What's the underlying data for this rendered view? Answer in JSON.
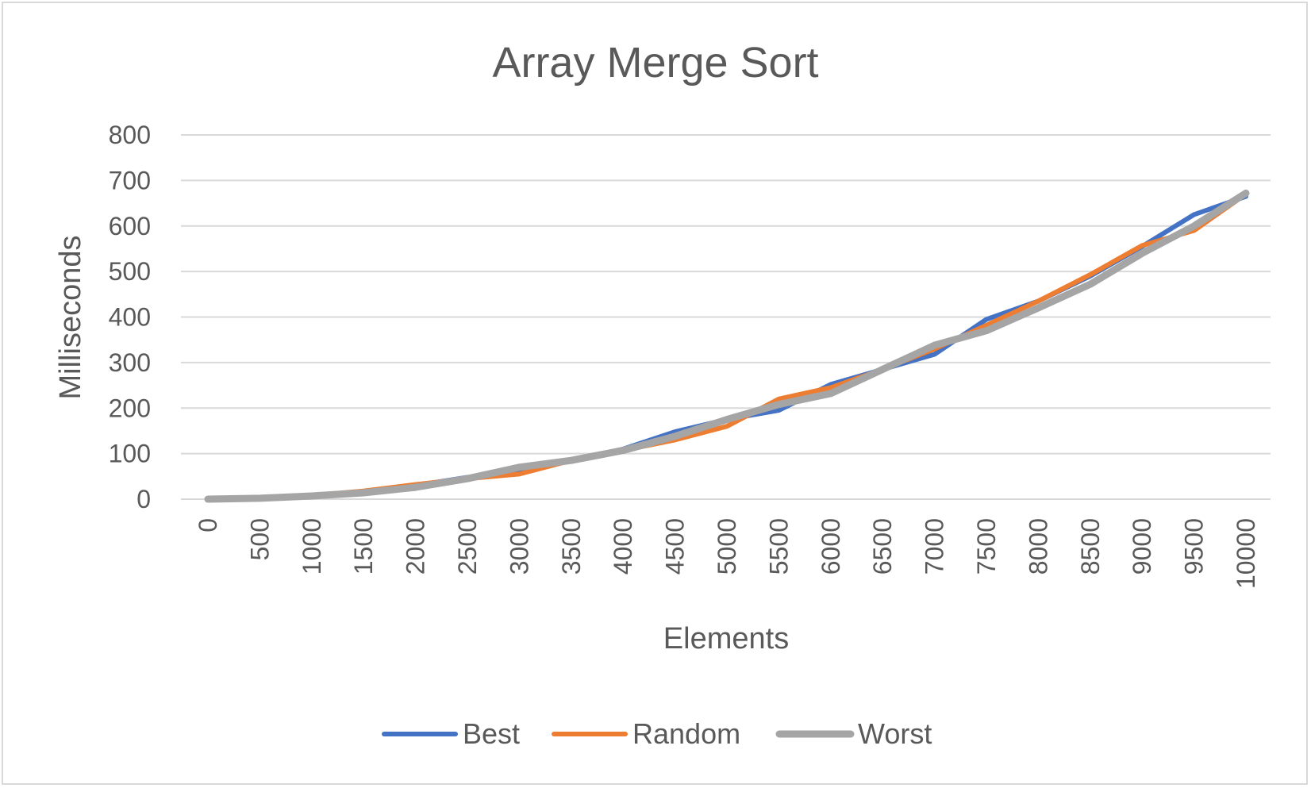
{
  "chart_data": {
    "type": "line",
    "title": "Array Merge Sort",
    "xlabel": "Elements",
    "ylabel": "Milliseconds",
    "ylim": [
      0,
      800
    ],
    "yticks": [
      0,
      100,
      200,
      300,
      400,
      500,
      600,
      700,
      800
    ],
    "categories": [
      "0",
      "500",
      "1000",
      "1500",
      "2000",
      "2500",
      "3000",
      "3500",
      "4000",
      "4500",
      "5000",
      "5500",
      "6000",
      "6500",
      "7000",
      "7500",
      "8000",
      "8500",
      "9000",
      "9500",
      "10000"
    ],
    "grid": true,
    "legend_position": "bottom",
    "series": [
      {
        "name": "Best",
        "color": "#4472c4",
        "values": [
          0,
          3,
          8,
          16,
          30,
          48,
          57,
          85,
          110,
          148,
          175,
          195,
          252,
          285,
          318,
          395,
          435,
          490,
          555,
          625,
          665
        ]
      },
      {
        "name": "Random",
        "color": "#ed7d31",
        "values": [
          0,
          3,
          8,
          18,
          32,
          45,
          55,
          85,
          107,
          130,
          160,
          220,
          245,
          285,
          330,
          382,
          435,
          493,
          557,
          590,
          670
        ]
      },
      {
        "name": "Worst",
        "color": "#a5a5a5",
        "values": [
          0,
          2,
          7,
          14,
          26,
          45,
          70,
          85,
          107,
          138,
          175,
          208,
          232,
          285,
          338,
          370,
          420,
          472,
          540,
          600,
          672
        ]
      }
    ]
  }
}
